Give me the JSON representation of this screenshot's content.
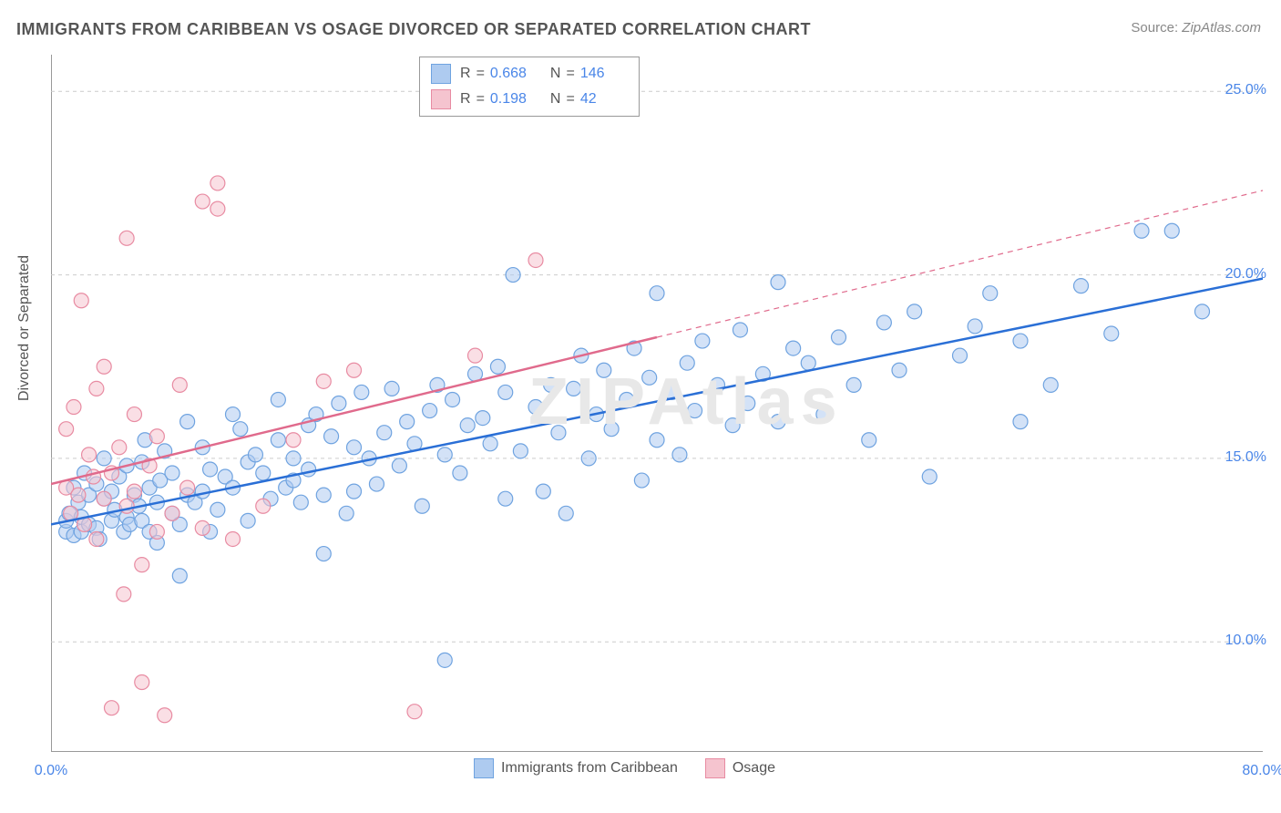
{
  "title": "IMMIGRANTS FROM CARIBBEAN VS OSAGE DIVORCED OR SEPARATED CORRELATION CHART",
  "source_label": "Source:",
  "source_value": "ZipAtlas.com",
  "watermark": "ZIPAtlas",
  "yaxis_title": "Divorced or Separated",
  "chart": {
    "type": "scatter-with-regression",
    "xlim": [
      0,
      80
    ],
    "ylim": [
      7,
      26
    ],
    "x_ticks": [
      0,
      10,
      20,
      30,
      40,
      50,
      60,
      70,
      80
    ],
    "x_tick_labels": {
      "0": "0.0%",
      "80": "80.0%"
    },
    "y_grid": [
      10,
      15,
      20,
      25
    ],
    "y_tick_labels": {
      "10": "10.0%",
      "15": "15.0%",
      "20": "20.0%",
      "25": "25.0%"
    },
    "background_color": "#ffffff",
    "grid_color": "#cccccc",
    "grid_dash": "4 4",
    "axis_color": "#999999",
    "marker_radius": 8,
    "marker_opacity": 0.55,
    "marker_stroke_width": 1.2,
    "line_width_solid": 2.5,
    "line_width_dashed": 1.2,
    "series": [
      {
        "name": "Immigrants from Caribbean",
        "label": "Immigrants from Caribbean",
        "color_fill": "#aecbf0",
        "color_stroke": "#6fa3e0",
        "line_color": "#2a6fd6",
        "R": 0.668,
        "N": 146,
        "regression": {
          "x1": 0,
          "y1": 13.2,
          "x2": 80,
          "y2": 19.9
        },
        "points": [
          [
            1,
            13.0
          ],
          [
            1,
            13.3
          ],
          [
            1.2,
            13.5
          ],
          [
            1.5,
            12.9
          ],
          [
            1.5,
            14.2
          ],
          [
            1.8,
            13.8
          ],
          [
            2,
            13.0
          ],
          [
            2,
            13.4
          ],
          [
            2.2,
            14.6
          ],
          [
            2.5,
            13.2
          ],
          [
            2.5,
            14.0
          ],
          [
            3,
            13.1
          ],
          [
            3,
            14.3
          ],
          [
            3.2,
            12.8
          ],
          [
            3.5,
            13.9
          ],
          [
            3.5,
            15.0
          ],
          [
            4,
            13.3
          ],
          [
            4,
            14.1
          ],
          [
            4.2,
            13.6
          ],
          [
            4.5,
            14.5
          ],
          [
            4.8,
            13.0
          ],
          [
            5,
            13.4
          ],
          [
            5,
            14.8
          ],
          [
            5.2,
            13.2
          ],
          [
            5.5,
            14.0
          ],
          [
            5.8,
            13.7
          ],
          [
            6,
            13.3
          ],
          [
            6,
            14.9
          ],
          [
            6.2,
            15.5
          ],
          [
            6.5,
            13.0
          ],
          [
            6.5,
            14.2
          ],
          [
            7,
            12.7
          ],
          [
            7,
            13.8
          ],
          [
            7.2,
            14.4
          ],
          [
            7.5,
            15.2
          ],
          [
            8,
            13.5
          ],
          [
            8,
            14.6
          ],
          [
            8.5,
            11.8
          ],
          [
            8.5,
            13.2
          ],
          [
            9,
            14.0
          ],
          [
            9,
            16.0
          ],
          [
            9.5,
            13.8
          ],
          [
            10,
            14.1
          ],
          [
            10,
            15.3
          ],
          [
            10.5,
            13.0
          ],
          [
            10.5,
            14.7
          ],
          [
            11,
            13.6
          ],
          [
            11.5,
            14.5
          ],
          [
            12,
            14.2
          ],
          [
            12,
            16.2
          ],
          [
            12.5,
            15.8
          ],
          [
            13,
            13.3
          ],
          [
            13,
            14.9
          ],
          [
            13.5,
            15.1
          ],
          [
            14,
            14.6
          ],
          [
            14.5,
            13.9
          ],
          [
            15,
            15.5
          ],
          [
            15,
            16.6
          ],
          [
            15.5,
            14.2
          ],
          [
            16,
            15.0
          ],
          [
            16,
            14.4
          ],
          [
            16.5,
            13.8
          ],
          [
            17,
            15.9
          ],
          [
            17,
            14.7
          ],
          [
            17.5,
            16.2
          ],
          [
            18,
            12.4
          ],
          [
            18,
            14.0
          ],
          [
            18.5,
            15.6
          ],
          [
            19,
            16.5
          ],
          [
            19.5,
            13.5
          ],
          [
            20,
            14.1
          ],
          [
            20,
            15.3
          ],
          [
            20.5,
            16.8
          ],
          [
            21,
            15.0
          ],
          [
            21.5,
            14.3
          ],
          [
            22,
            15.7
          ],
          [
            22.5,
            16.9
          ],
          [
            23,
            14.8
          ],
          [
            23.5,
            16.0
          ],
          [
            24,
            15.4
          ],
          [
            24.5,
            13.7
          ],
          [
            25,
            16.3
          ],
          [
            25.5,
            17.0
          ],
          [
            26,
            15.1
          ],
          [
            26,
            9.5
          ],
          [
            26.5,
            16.6
          ],
          [
            27,
            14.6
          ],
          [
            27.5,
            15.9
          ],
          [
            28,
            17.3
          ],
          [
            28.5,
            16.1
          ],
          [
            29,
            15.4
          ],
          [
            29.5,
            17.5
          ],
          [
            30,
            13.9
          ],
          [
            30,
            16.8
          ],
          [
            30.5,
            20.0
          ],
          [
            31,
            15.2
          ],
          [
            32,
            16.4
          ],
          [
            32.5,
            14.1
          ],
          [
            33,
            17.0
          ],
          [
            33.5,
            15.7
          ],
          [
            34,
            13.5
          ],
          [
            34.5,
            16.9
          ],
          [
            35,
            17.8
          ],
          [
            35.5,
            15.0
          ],
          [
            36,
            16.2
          ],
          [
            36.5,
            17.4
          ],
          [
            37,
            15.8
          ],
          [
            38,
            16.6
          ],
          [
            38.5,
            18.0
          ],
          [
            39,
            14.4
          ],
          [
            39.5,
            17.2
          ],
          [
            40,
            15.5
          ],
          [
            40,
            19.5
          ],
          [
            41,
            16.8
          ],
          [
            41.5,
            15.1
          ],
          [
            42,
            17.6
          ],
          [
            42.5,
            16.3
          ],
          [
            43,
            18.2
          ],
          [
            44,
            17.0
          ],
          [
            45,
            15.9
          ],
          [
            45.5,
            18.5
          ],
          [
            46,
            16.5
          ],
          [
            47,
            17.3
          ],
          [
            48,
            16.0
          ],
          [
            48,
            19.8
          ],
          [
            49,
            18.0
          ],
          [
            50,
            17.6
          ],
          [
            51,
            16.2
          ],
          [
            52,
            18.3
          ],
          [
            53,
            17.0
          ],
          [
            54,
            15.5
          ],
          [
            55,
            18.7
          ],
          [
            56,
            17.4
          ],
          [
            57,
            19.0
          ],
          [
            58,
            14.5
          ],
          [
            60,
            17.8
          ],
          [
            61,
            18.6
          ],
          [
            62,
            19.5
          ],
          [
            64,
            16.0
          ],
          [
            64,
            18.2
          ],
          [
            66,
            17.0
          ],
          [
            68,
            19.7
          ],
          [
            70,
            18.4
          ],
          [
            72,
            21.2
          ],
          [
            74,
            21.2
          ],
          [
            76,
            19.0
          ]
        ]
      },
      {
        "name": "Osage",
        "label": "Osage",
        "color_fill": "#f5c4cf",
        "color_stroke": "#e88ba2",
        "line_color": "#e06a8c",
        "R": 0.198,
        "N": 42,
        "regression_solid": {
          "x1": 0,
          "y1": 14.3,
          "x2": 40,
          "y2": 18.3
        },
        "regression_dashed": {
          "x1": 40,
          "y1": 18.3,
          "x2": 80,
          "y2": 22.3
        },
        "points": [
          [
            1,
            14.2
          ],
          [
            1,
            15.8
          ],
          [
            1.3,
            13.5
          ],
          [
            1.5,
            16.4
          ],
          [
            1.8,
            14.0
          ],
          [
            2,
            19.3
          ],
          [
            2.2,
            13.2
          ],
          [
            2.5,
            15.1
          ],
          [
            2.8,
            14.5
          ],
          [
            3,
            16.9
          ],
          [
            3,
            12.8
          ],
          [
            3.5,
            13.9
          ],
          [
            3.5,
            17.5
          ],
          [
            4,
            14.6
          ],
          [
            4,
            8.2
          ],
          [
            4.5,
            15.3
          ],
          [
            4.8,
            11.3
          ],
          [
            5,
            21.0
          ],
          [
            5,
            13.7
          ],
          [
            5.5,
            14.1
          ],
          [
            5.5,
            16.2
          ],
          [
            6,
            12.1
          ],
          [
            6,
            8.9
          ],
          [
            6.5,
            14.8
          ],
          [
            7,
            15.6
          ],
          [
            7,
            13.0
          ],
          [
            7.5,
            8.0
          ],
          [
            8,
            13.5
          ],
          [
            8.5,
            17.0
          ],
          [
            9,
            14.2
          ],
          [
            10,
            22.0
          ],
          [
            10,
            13.1
          ],
          [
            11,
            22.5
          ],
          [
            11,
            21.8
          ],
          [
            12,
            12.8
          ],
          [
            14,
            13.7
          ],
          [
            16,
            15.5
          ],
          [
            18,
            17.1
          ],
          [
            20,
            17.4
          ],
          [
            24,
            8.1
          ],
          [
            28,
            17.8
          ],
          [
            32,
            20.4
          ]
        ]
      }
    ]
  },
  "legend_top": {
    "rows": [
      {
        "swatch_fill": "#aecbf0",
        "swatch_stroke": "#6fa3e0",
        "R_label": "R",
        "R_val": "0.668",
        "N_label": "N",
        "N_val": "146"
      },
      {
        "swatch_fill": "#f5c4cf",
        "swatch_stroke": "#e88ba2",
        "R_label": "R",
        "R_val": "0.198",
        "N_label": "N",
        "N_val": "42"
      }
    ]
  },
  "legend_bottom": {
    "items": [
      {
        "swatch_fill": "#aecbf0",
        "swatch_stroke": "#6fa3e0",
        "label": "Immigrants from Caribbean"
      },
      {
        "swatch_fill": "#f5c4cf",
        "swatch_stroke": "#e88ba2",
        "label": "Osage"
      }
    ]
  }
}
